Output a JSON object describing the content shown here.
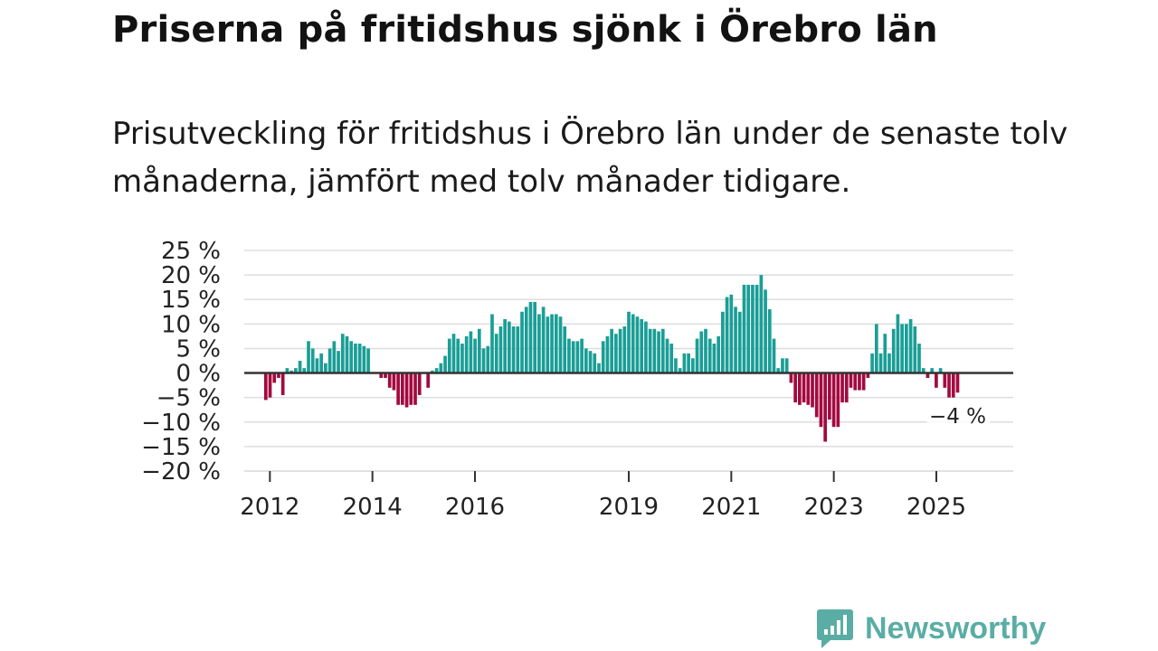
{
  "header": {
    "title": "Priserna på fritidshus sjönk i Örebro län",
    "subtitle": "Prisutveckling för fritidshus i Örebro län under de senaste tolv månaderna, jämfört med tolv månader tidigare."
  },
  "brand": {
    "name": "Newsworthy",
    "icon": "newsworthy-logo-icon",
    "color": "#5aada5"
  },
  "colors": {
    "positive": "#1a9e96",
    "negative": "#a3093f",
    "zero_line": "#333333",
    "grid": "#dddddd"
  },
  "chart_data": {
    "type": "bar",
    "title": "Priserna på fritidshus sjönk i Örebro län",
    "xlabel": "",
    "ylabel": "",
    "ylim": [
      -20,
      25
    ],
    "y_ticks": [
      25,
      20,
      15,
      10,
      5,
      0,
      -5,
      -10,
      -15,
      -20
    ],
    "y_tick_labels": [
      "25 %",
      "20 %",
      "15 %",
      "10 %",
      "5 %",
      "0 %",
      "−5 %",
      "−10 %",
      "−15 %",
      "−20 %"
    ],
    "x_ticks": [
      2012,
      2014,
      2016,
      2019,
      2021,
      2023,
      2025
    ],
    "x_tick_labels": [
      "2012",
      "2014",
      "2016",
      "2019",
      "2021",
      "2023",
      "2025"
    ],
    "x_start": 2011.5,
    "x_end": 2026.5,
    "bar_start": 2011.92,
    "bar_step": 0.0833,
    "grid": true,
    "last_label": "−4 %",
    "values": [
      -5.5,
      -5,
      -2,
      -1,
      -4.5,
      1,
      0.5,
      1,
      2.5,
      1,
      6.5,
      5,
      3,
      4,
      2,
      5,
      6.5,
      4.5,
      8,
      7.5,
      6.5,
      6,
      6,
      5.5,
      5,
      null,
      0,
      -1,
      -1,
      -3,
      -3.5,
      -6.5,
      -6.5,
      -7,
      -6.5,
      -6.5,
      -4.5,
      null,
      -3,
      0.5,
      1,
      2,
      3.5,
      7,
      8,
      7,
      6,
      7.5,
      8.5,
      7,
      9,
      5,
      5.5,
      12,
      8,
      9.5,
      11,
      10.5,
      9.5,
      9.5,
      12.5,
      13.5,
      14.5,
      14.5,
      12,
      13.5,
      11.5,
      12,
      12,
      11.5,
      9.5,
      7,
      6.5,
      6.5,
      7,
      5,
      4.5,
      4,
      2,
      6.5,
      7.5,
      9,
      8,
      9,
      9.5,
      12.5,
      12,
      11.5,
      11,
      10.5,
      9,
      9,
      8.5,
      9,
      7,
      6,
      3,
      1,
      4,
      4,
      3,
      7,
      8.5,
      9,
      7,
      6,
      7.5,
      12.5,
      15.5,
      16,
      13.5,
      12.5,
      18,
      18,
      18,
      18,
      20,
      17,
      13,
      7,
      1,
      3,
      3,
      -2,
      -6,
      -6.5,
      -6,
      -6.5,
      -7,
      -9,
      -11,
      -14,
      -9.5,
      -11,
      -11,
      -6,
      -6,
      -3,
      -3.5,
      -3.5,
      -3.5,
      -1,
      4,
      10,
      4,
      8,
      4,
      9,
      12,
      10,
      10,
      11,
      9.5,
      6,
      1,
      -1,
      1,
      -3,
      1,
      -3,
      -5,
      -5,
      -4
    ]
  }
}
